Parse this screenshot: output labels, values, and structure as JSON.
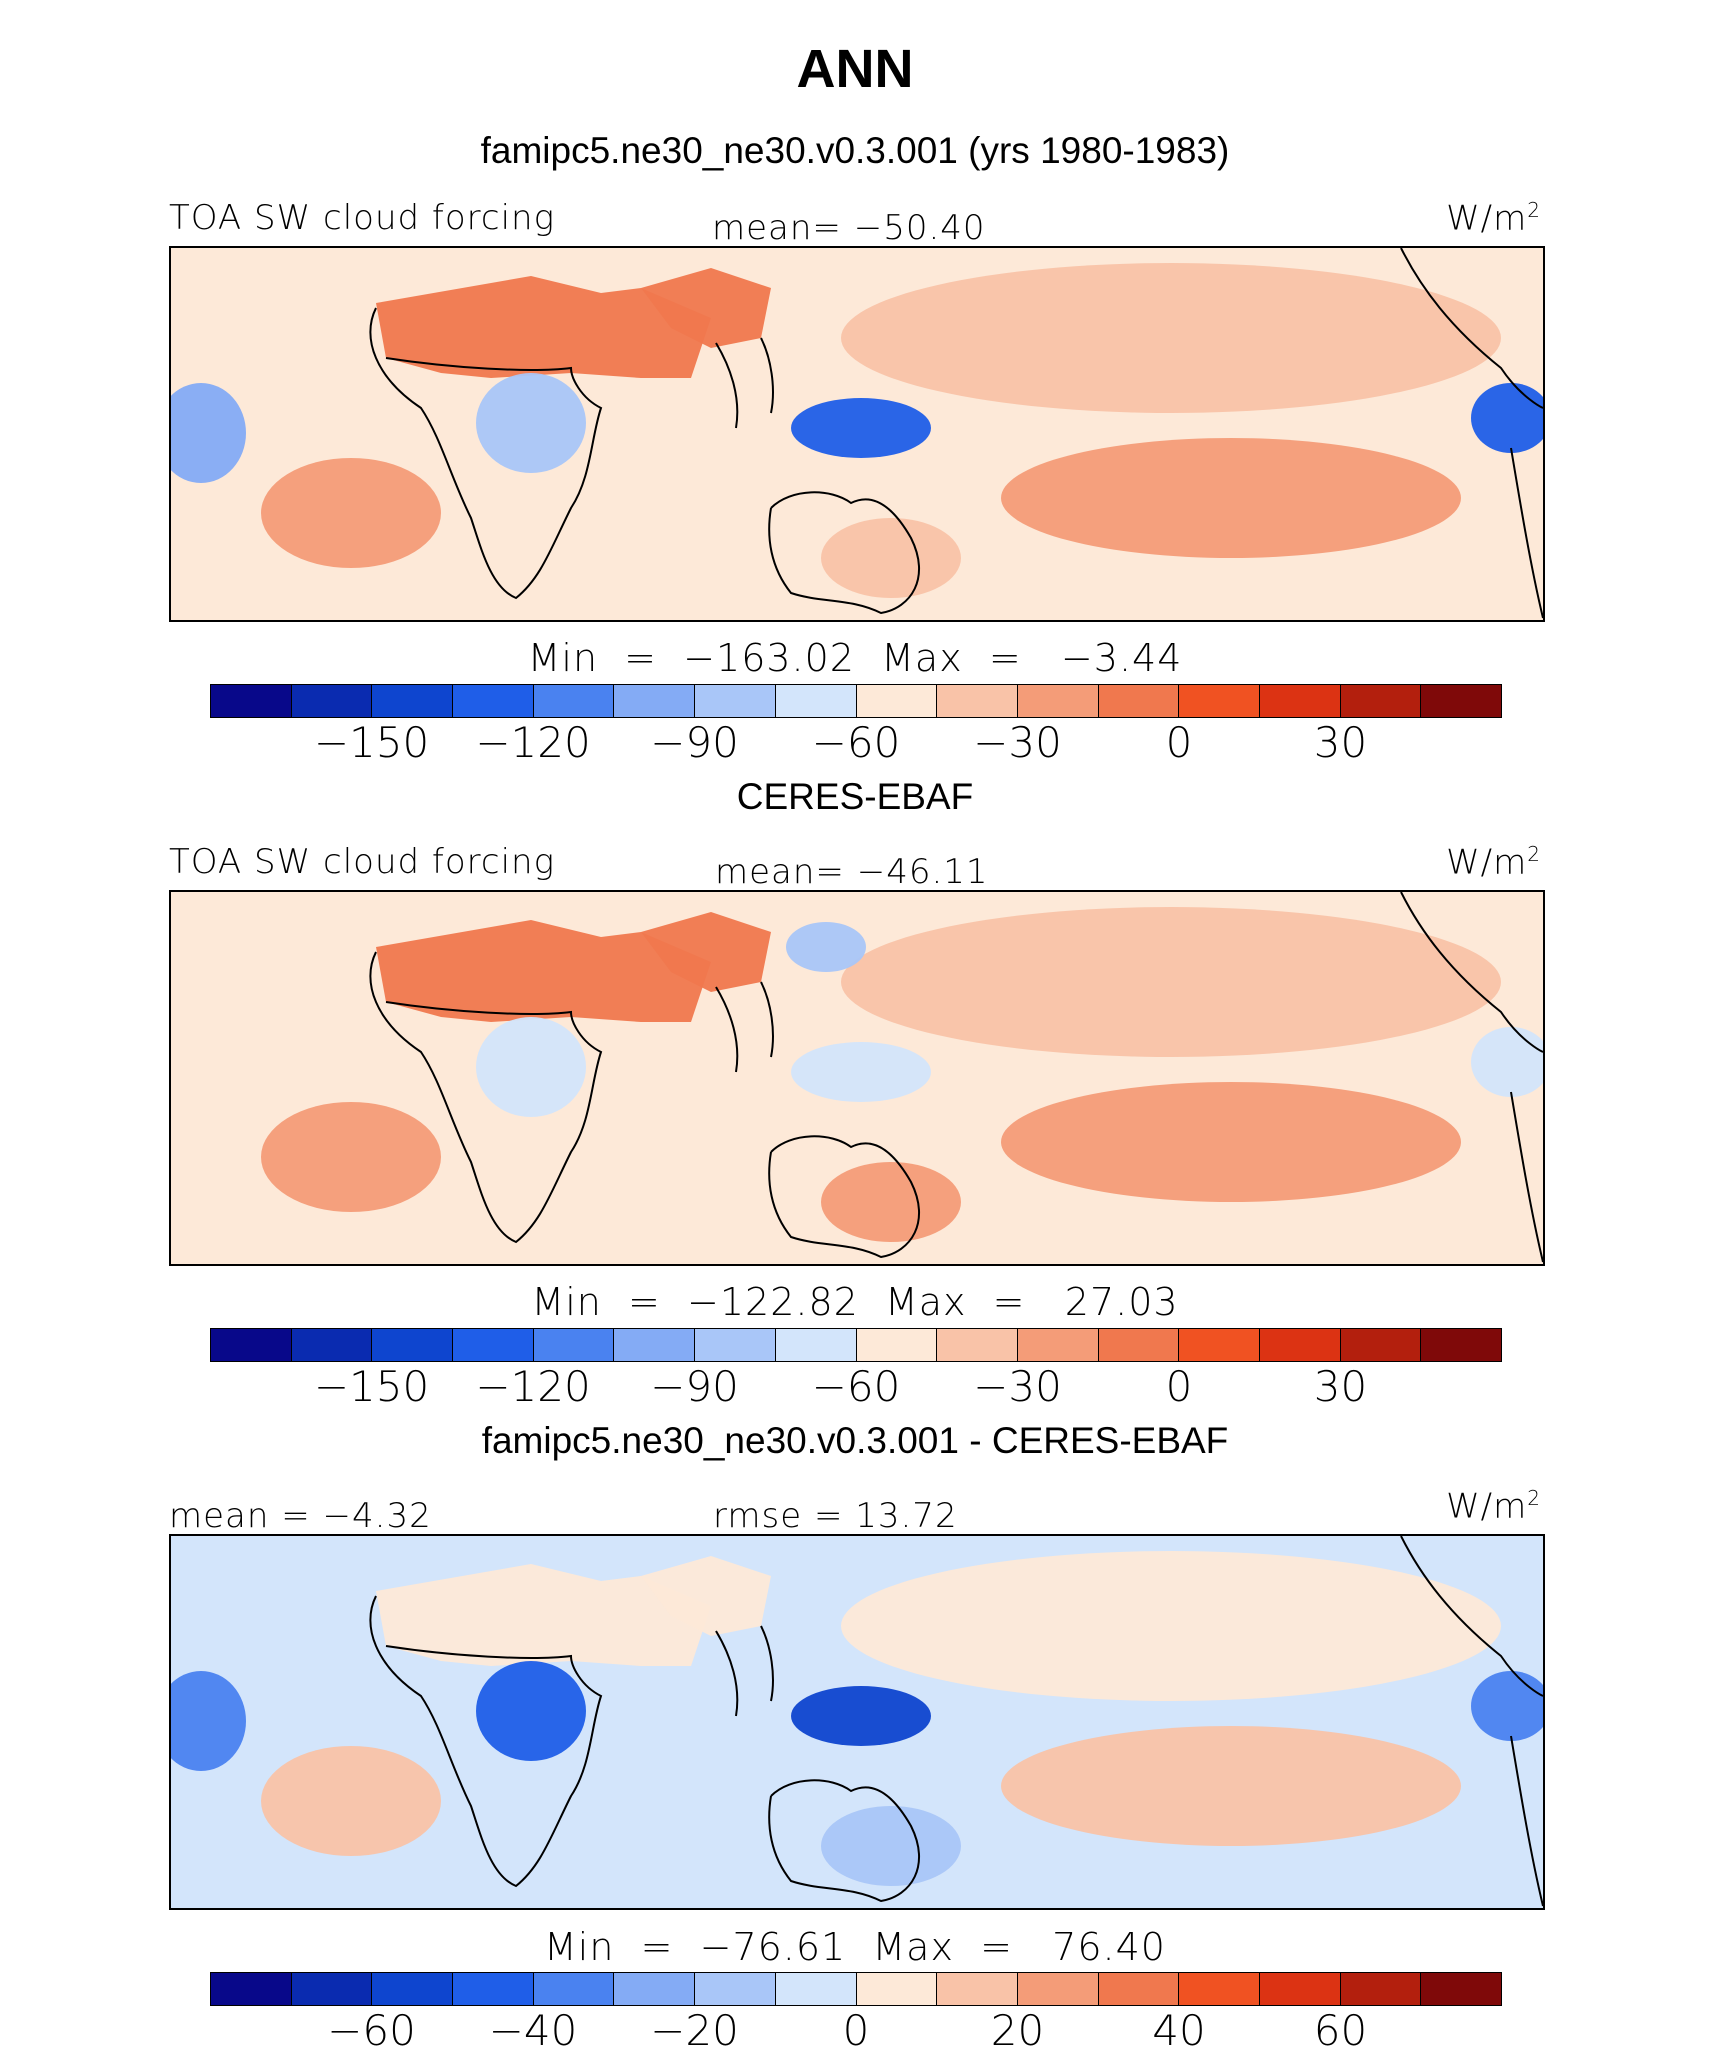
{
  "figure": {
    "title": "ANN"
  },
  "colors": {
    "palette": [
      "#08088a",
      "#0a2bb0",
      "#0e45cf",
      "#1f5ee8",
      "#4a82f0",
      "#84abf5",
      "#a9c6f8",
      "#d3e5fb",
      "#fde9d8",
      "#f9c3a8",
      "#f49c78",
      "#f0784e",
      "#f05222",
      "#dc3313",
      "#b31f0d",
      "#7f0909"
    ]
  },
  "panels": [
    {
      "title": "famipc5.ne30_ne30.v0.3.001 (yrs 1980-1983)",
      "left_label": "TOA SW cloud forcing",
      "center_label": "mean= −50.40",
      "units": "W/m",
      "units_exp": "2",
      "minmax": "Min  =  −163.02  Max  =   −3.44",
      "colorbar_ticks": [
        "−150",
        "−120",
        "−90",
        "−60",
        "−30",
        "0",
        "30"
      ],
      "colorbar_tick_positions": [
        2,
        4,
        6,
        8,
        10,
        12,
        14
      ],
      "map": {
        "background_level": 8,
        "features": [
          {
            "name": "pacific-anomaly",
            "level": 9
          },
          {
            "name": "sahara-anomaly",
            "level": 11
          },
          {
            "name": "arabia-anomaly",
            "level": 11
          },
          {
            "name": "south-atlantic-anomaly",
            "level": 10
          },
          {
            "name": "south-pacific-anomaly",
            "level": 10
          },
          {
            "name": "australia-anomaly",
            "level": 9
          },
          {
            "name": "central-africa-anomaly",
            "level": 6
          },
          {
            "name": "maritime-continent-anomaly",
            "level": 3
          },
          {
            "name": "amazon-anomaly",
            "level": 5
          },
          {
            "name": "central-america-anomaly",
            "level": 3
          }
        ]
      }
    },
    {
      "title": "CERES-EBAF",
      "left_label": "TOA SW cloud forcing",
      "center_label": "mean= −46.11",
      "units": "W/m",
      "units_exp": "2",
      "minmax": "Min  =  −122.82  Max  =   27.03",
      "colorbar_ticks": [
        "−150",
        "−120",
        "−90",
        "−60",
        "−30",
        "0",
        "30"
      ],
      "colorbar_tick_positions": [
        2,
        4,
        6,
        8,
        10,
        12,
        14
      ],
      "map": {
        "background_level": 8,
        "features": [
          {
            "name": "pacific-anomaly",
            "level": 9
          },
          {
            "name": "sahara-anomaly",
            "level": 11
          },
          {
            "name": "arabia-anomaly",
            "level": 11
          },
          {
            "name": "south-atlantic-anomaly",
            "level": 10
          },
          {
            "name": "south-pacific-anomaly",
            "level": 10
          },
          {
            "name": "australia-anomaly",
            "level": 10
          },
          {
            "name": "central-africa-anomaly",
            "level": 7
          },
          {
            "name": "maritime-continent-anomaly",
            "level": 7
          },
          {
            "name": "tibet-anomaly",
            "level": 6
          },
          {
            "name": "central-america-anomaly",
            "level": 7
          }
        ]
      }
    },
    {
      "title": "famipc5.ne30_ne30.v0.3.001 - CERES-EBAF",
      "left_label": "mean  =   −4.32",
      "center_label": "rmse  =   13.72",
      "units": "W/m",
      "units_exp": "2",
      "minmax": "Min  =  −76.61  Max  =   76.40",
      "colorbar_ticks": [
        "−60",
        "−40",
        "−20",
        "0",
        "20",
        "40",
        "60"
      ],
      "colorbar_tick_positions": [
        2,
        4,
        6,
        8,
        10,
        12,
        14
      ],
      "map": {
        "background_level": 7,
        "features": [
          {
            "name": "pacific-anomaly",
            "level": 8
          },
          {
            "name": "sahara-anomaly",
            "level": 8
          },
          {
            "name": "arabia-anomaly",
            "level": 8
          },
          {
            "name": "south-atlantic-anomaly",
            "level": 9
          },
          {
            "name": "south-pacific-anomaly",
            "level": 9
          },
          {
            "name": "australia-anomaly",
            "level": 6
          },
          {
            "name": "central-africa-anomaly",
            "level": 3
          },
          {
            "name": "maritime-continent-anomaly",
            "level": 2
          },
          {
            "name": "amazon-anomaly",
            "level": 4
          },
          {
            "name": "central-america-anomaly",
            "level": 4
          }
        ]
      }
    }
  ]
}
